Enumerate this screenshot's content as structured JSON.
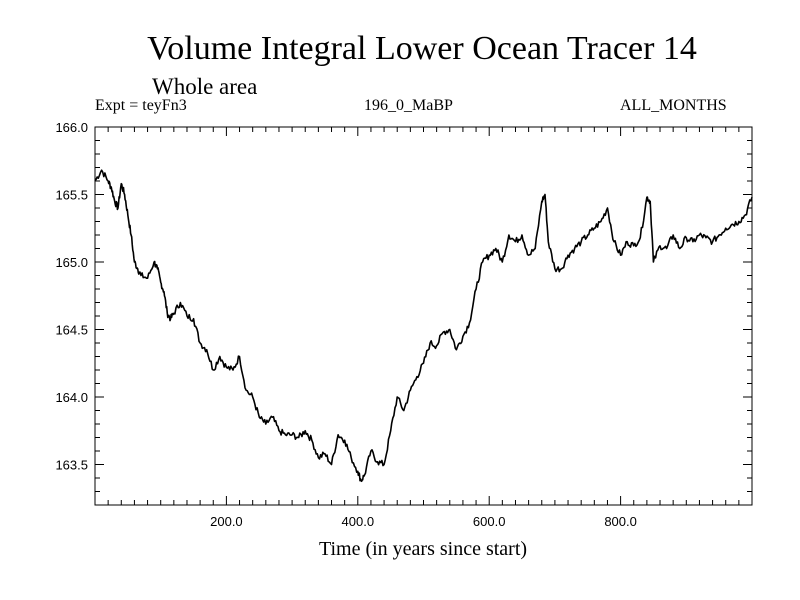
{
  "header": {
    "title": "Volume Integral Lower Ocean Tracer 14",
    "subtitle": "Whole area",
    "expt": "Expt = teyFn3",
    "run_label": "196_0_MaBP",
    "months_label": "ALL_MONTHS"
  },
  "chart_data": {
    "type": "line",
    "title": "Volume Integral Lower Ocean Tracer 14",
    "subtitle": "Whole area",
    "xlabel": "Time (in years since start)",
    "ylabel": "",
    "xlim": [
      0,
      1000
    ],
    "ylim": [
      163.2,
      166.0
    ],
    "x_ticks": [
      200,
      400,
      600,
      800
    ],
    "x_tick_labels": [
      "200.0",
      "400.0",
      "600.0",
      "800.0"
    ],
    "y_ticks": [
      163.5,
      164.0,
      164.5,
      165.0,
      165.5,
      166.0
    ],
    "y_tick_labels": [
      "163.5",
      "164.0",
      "164.5",
      "165.0",
      "165.5",
      "166.0"
    ],
    "grid": false,
    "series": [
      {
        "name": "Tracer 14",
        "color": "#000000",
        "x": [
          0,
          10,
          20,
          25,
          30,
          35,
          40,
          45,
          50,
          55,
          60,
          65,
          70,
          80,
          90,
          95,
          100,
          105,
          110,
          115,
          120,
          130,
          140,
          150,
          160,
          170,
          180,
          190,
          200,
          210,
          220,
          230,
          240,
          250,
          260,
          270,
          280,
          290,
          300,
          310,
          320,
          330,
          340,
          350,
          360,
          370,
          380,
          390,
          400,
          405,
          410,
          420,
          430,
          440,
          450,
          460,
          470,
          480,
          490,
          500,
          510,
          520,
          530,
          540,
          550,
          560,
          570,
          580,
          590,
          600,
          610,
          620,
          630,
          640,
          650,
          660,
          670,
          680,
          685,
          690,
          700,
          710,
          720,
          730,
          740,
          750,
          760,
          770,
          780,
          790,
          800,
          810,
          820,
          830,
          840,
          845,
          850,
          860,
          870,
          880,
          890,
          900,
          910,
          920,
          930,
          940,
          950,
          960,
          970,
          980,
          990,
          1000
        ],
        "y": [
          165.6,
          165.68,
          165.6,
          165.55,
          165.45,
          165.4,
          165.58,
          165.5,
          165.35,
          165.2,
          165.0,
          164.95,
          164.9,
          164.88,
          165.0,
          164.95,
          164.85,
          164.78,
          164.62,
          164.58,
          164.62,
          164.7,
          164.6,
          164.58,
          164.4,
          164.35,
          164.2,
          164.3,
          164.22,
          164.2,
          164.3,
          164.05,
          164.0,
          163.85,
          163.8,
          163.85,
          163.75,
          163.72,
          163.72,
          163.7,
          163.75,
          163.68,
          163.55,
          163.58,
          163.5,
          163.72,
          163.68,
          163.55,
          163.45,
          163.38,
          163.42,
          163.6,
          163.52,
          163.5,
          163.75,
          164.0,
          163.9,
          164.05,
          164.15,
          164.25,
          164.4,
          164.38,
          164.48,
          164.5,
          164.35,
          164.45,
          164.55,
          164.8,
          165.0,
          165.05,
          165.1,
          165.0,
          165.2,
          165.15,
          165.2,
          165.05,
          165.1,
          165.45,
          165.5,
          165.15,
          164.95,
          164.95,
          165.05,
          165.1,
          165.15,
          165.2,
          165.25,
          165.3,
          165.4,
          165.15,
          165.05,
          165.15,
          165.12,
          165.18,
          165.48,
          165.45,
          165.0,
          165.12,
          165.1,
          165.2,
          165.1,
          165.18,
          165.15,
          165.2,
          165.18,
          165.15,
          165.2,
          165.25,
          165.28,
          165.3,
          165.35,
          165.48
        ]
      }
    ]
  }
}
